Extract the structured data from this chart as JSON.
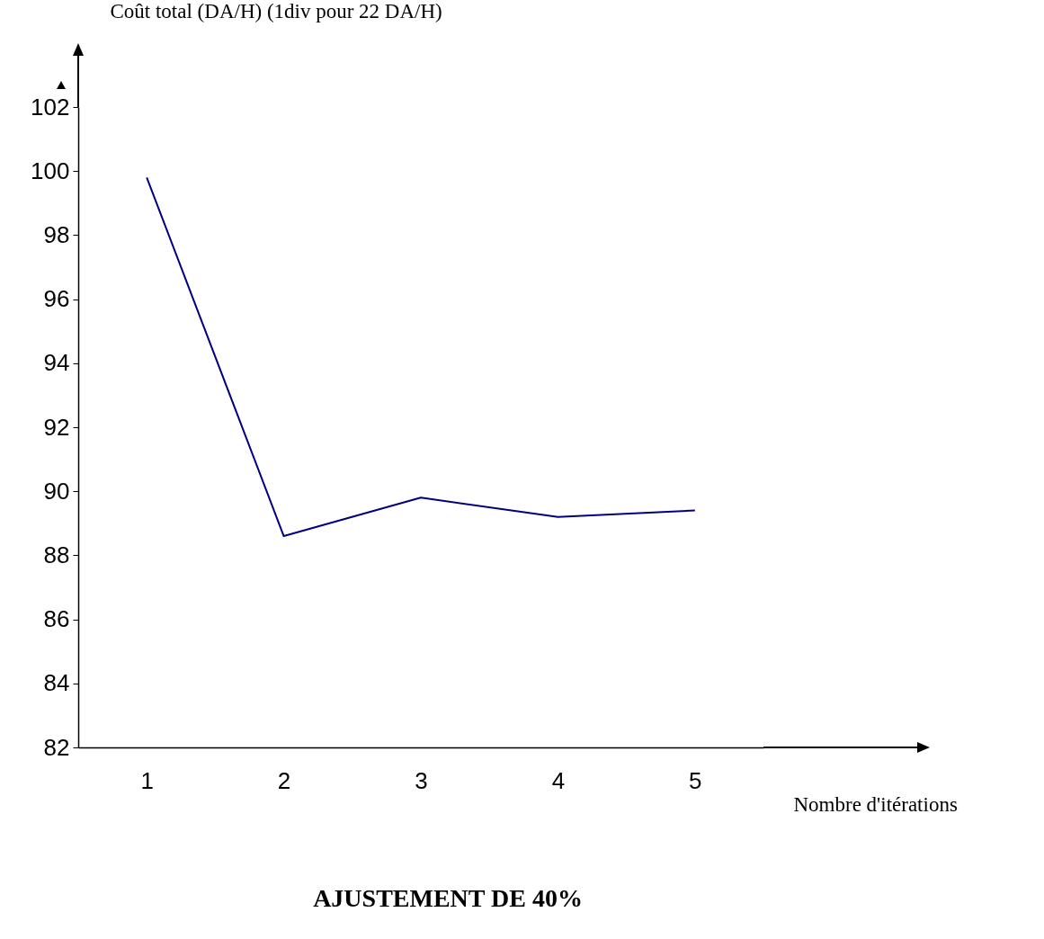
{
  "chart_data": {
    "type": "line",
    "title": "AJUSTEMENT DE 40%",
    "xlabel": "Nombre d'itérations",
    "ylabel": "Coût total (DA/H) (1div pour 22 DA/H)",
    "categories": [
      "1",
      "2",
      "3",
      "4",
      "5"
    ],
    "series": [
      {
        "color": "#000080",
        "values": [
          99.8,
          88.6,
          89.8,
          89.2,
          89.4
        ]
      }
    ],
    "ylim": [
      82,
      102
    ],
    "yticks": [
      82,
      84,
      86,
      88,
      90,
      92,
      94,
      96,
      98,
      100,
      102
    ],
    "grid": false,
    "legend": false,
    "marker": "none",
    "line_style": "solid"
  }
}
